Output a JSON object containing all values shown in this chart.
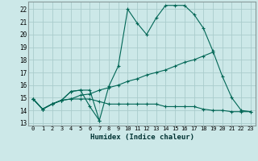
{
  "title": "",
  "xlabel": "Humidex (Indice chaleur)",
  "bg_color": "#cce8e8",
  "grid_color": "#aacccc",
  "line_color": "#006655",
  "xlim": [
    -0.5,
    23.5
  ],
  "ylim": [
    12.8,
    22.6
  ],
  "yticks": [
    13,
    14,
    15,
    16,
    17,
    18,
    19,
    20,
    21,
    22
  ],
  "xticks": [
    0,
    1,
    2,
    3,
    4,
    5,
    6,
    7,
    8,
    9,
    10,
    11,
    12,
    13,
    14,
    15,
    16,
    17,
    18,
    19,
    20,
    21,
    22,
    23
  ],
  "series": [
    [
      14.9,
      14.1,
      14.5,
      14.8,
      15.5,
      15.6,
      15.6,
      13.2,
      15.9,
      17.5,
      22.0,
      20.9,
      20.0,
      21.3,
      22.3,
      22.3,
      22.3,
      21.6,
      20.5,
      18.7,
      16.7,
      15.0,
      14.0,
      13.9
    ],
    [
      14.9,
      14.1,
      14.5,
      14.8,
      15.5,
      15.6,
      14.3,
      13.2,
      null,
      null,
      null,
      null,
      null,
      null,
      null,
      null,
      null,
      null,
      null,
      null,
      null,
      null,
      null,
      null
    ],
    [
      14.9,
      14.1,
      14.5,
      14.8,
      14.9,
      15.2,
      15.3,
      15.6,
      15.8,
      16.0,
      16.3,
      16.5,
      16.8,
      17.0,
      17.2,
      17.5,
      17.8,
      18.0,
      18.3,
      18.6,
      null,
      null,
      null,
      null
    ],
    [
      14.9,
      14.1,
      14.5,
      14.8,
      14.9,
      14.9,
      14.9,
      14.7,
      14.5,
      14.5,
      14.5,
      14.5,
      14.5,
      14.5,
      14.3,
      14.3,
      14.3,
      14.3,
      14.1,
      14.0,
      14.0,
      13.9,
      13.9,
      13.9
    ]
  ]
}
